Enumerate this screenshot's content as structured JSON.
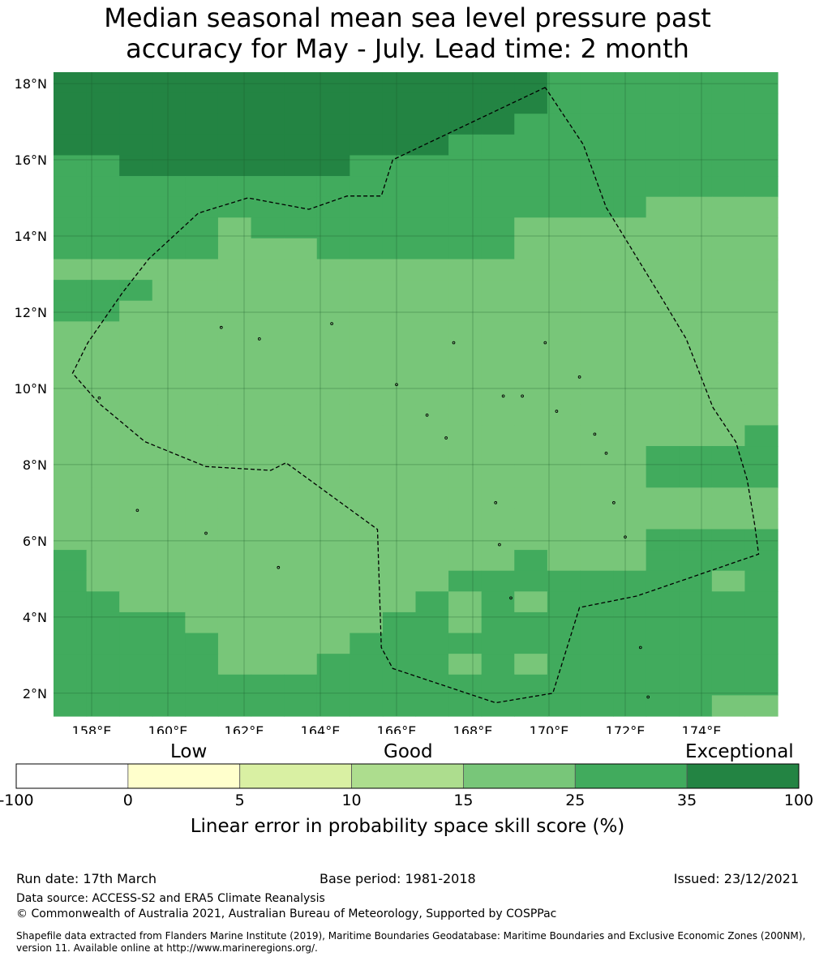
{
  "title_line1": "Median seasonal mean sea level pressure past",
  "title_line2": "accuracy for May - July. Lead time: 2 month",
  "map": {
    "lon_range": [
      157,
      176
    ],
    "lat_range": [
      1.4,
      18.3
    ],
    "grid_step_deg": 0.84,
    "x_ticks": [
      "158°E",
      "160°E",
      "162°E",
      "164°E",
      "166°E",
      "168°E",
      "170°E",
      "172°E",
      "174°E"
    ],
    "y_ticks": [
      "18°N",
      "16°N",
      "14°N",
      "12°N",
      "10°N",
      "8°N",
      "6°N",
      "4°N",
      "2°N"
    ],
    "level_colors": {
      "3": "#78c679",
      "4": "#41ab5d",
      "5": "#238443"
    },
    "skill_grid_rows_north_to_south": [
      "5555555555555554444444",
      "5555555555555554444444",
      "5555555555555544444444",
      "5555555555554444444444",
      "4455555554444444444444",
      "4444444444444444444444",
      "4444444444444444443333",
      "4444434444444433333333",
      "4444433344444433333333",
      "3333333333333333333333",
      "4443333333333333333333",
      "4433333333333333333333",
      "3333333333333333333333",
      "3333333333333333333333",
      "3333333333333333333333",
      "3333333333333333333333",
      "3333333333333333333333",
      "3333333333333333333334",
      "3333333333333333334444",
      "3333333333333333334444",
      "3333333333333333333333",
      "3333333333333333333333",
      "3333333333333333334444",
      "4333333333333343334444",
      "4333333333334444444434",
      "4433333333343434444444",
      "4444333333443444444444",
      "4444433334444444444444",
      "4444433344443434444444",
      "4444444444444444444444",
      "4444444444444444444433"
    ],
    "eez_boundary_lonlat": [
      [
        169.9,
        17.9
      ],
      [
        165.9,
        16.0
      ],
      [
        165.6,
        15.05
      ],
      [
        164.7,
        15.05
      ],
      [
        163.7,
        14.7
      ],
      [
        162.1,
        15.0
      ],
      [
        160.8,
        14.6
      ],
      [
        159.5,
        13.4
      ],
      [
        158.8,
        12.5
      ],
      [
        157.9,
        11.2
      ],
      [
        157.5,
        10.4
      ],
      [
        158.2,
        9.6
      ],
      [
        159.4,
        8.6
      ],
      [
        161.0,
        7.95
      ],
      [
        162.7,
        7.85
      ],
      [
        163.1,
        8.05
      ],
      [
        165.5,
        6.3
      ],
      [
        165.6,
        3.2
      ],
      [
        165.9,
        2.65
      ],
      [
        168.6,
        1.75
      ],
      [
        170.1,
        2.0
      ],
      [
        170.8,
        4.25
      ],
      [
        172.3,
        4.55
      ],
      [
        175.5,
        5.65
      ],
      [
        175.4,
        6.4
      ],
      [
        175.2,
        7.6
      ],
      [
        174.9,
        8.6
      ],
      [
        174.3,
        9.5
      ],
      [
        173.6,
        11.3
      ],
      [
        173.0,
        12.3
      ],
      [
        171.5,
        14.75
      ],
      [
        170.9,
        16.4
      ],
      [
        169.9,
        17.9
      ]
    ]
  },
  "colorbar": {
    "categories": [
      "Low",
      "Good",
      "Exceptional"
    ],
    "boundaries": [
      "-100",
      "0",
      "5",
      "10",
      "15",
      "25",
      "35",
      "100"
    ],
    "colors": [
      "#ffffff",
      "#ffffcc",
      "#d9f0a3",
      "#addd8e",
      "#78c679",
      "#41ab5d",
      "#238443"
    ],
    "title": "Linear error in probability space skill score (%)"
  },
  "footer": {
    "run_date": "Run date: 17th March",
    "base_period": "Base period: 1981-2018",
    "issued": "Issued: 23/12/2021",
    "data_source": "Data source: ACCESS-S2 and ERA5 Climate Reanalysis",
    "copyright": "© Commonwealth of Australia 2021, Australian Bureau of Meteorology, Supported by COSPPac",
    "shapefile_line1": "Shapefile data extracted from Flanders Marine Institute (2019), Maritime Boundaries Geodatabase: Maritime Boundaries and Exclusive Economic Zones (200NM),",
    "shapefile_line2": "version 11. Available online at http://www.marineregions.org/."
  }
}
